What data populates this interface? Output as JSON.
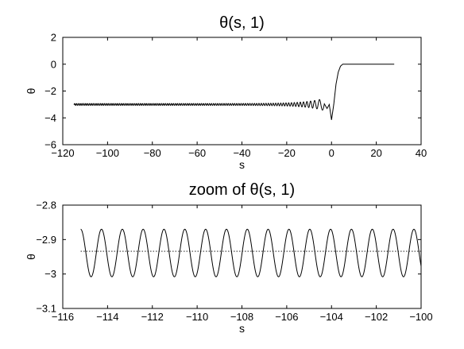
{
  "chart_data": [
    {
      "type": "line",
      "title": "θ(s, 1)",
      "xlabel": "s",
      "ylabel": "θ",
      "xlim": [
        -120,
        40
      ],
      "ylim": [
        -6,
        2
      ],
      "xticks": [
        -120,
        -100,
        -80,
        -60,
        -40,
        -20,
        0,
        20,
        40
      ],
      "xtick_labels": [
        "−120",
        "−100",
        "−80",
        "−60",
        "−40",
        "−20",
        "0",
        "20",
        "40"
      ],
      "yticks": [
        -6,
        -4,
        -2,
        0,
        2
      ],
      "ytick_labels": [
        "−6",
        "−4",
        "−2",
        "0",
        "2"
      ],
      "grid": false,
      "series": [
        {
          "points": [
            [
              -115,
              -2.93
            ],
            [
              -100,
              -2.95
            ],
            [
              -80,
              -2.98
            ],
            [
              -60,
              -3.0
            ],
            [
              -40,
              -3.0
            ],
            [
              -30,
              -3.0
            ],
            [
              -20,
              -3.02
            ],
            [
              -15,
              -3.05
            ],
            [
              -10,
              -3.1
            ],
            [
              -6,
              -3.2
            ],
            [
              -4,
              -3.25
            ],
            [
              -2,
              -3.3
            ],
            [
              -1,
              -3.0
            ],
            [
              0,
              -4.15
            ],
            [
              1,
              -3.0
            ],
            [
              2,
              -1.5
            ],
            [
              3,
              -0.6
            ],
            [
              4,
              -0.15
            ],
            [
              5,
              0.0
            ],
            [
              10,
              0.0
            ],
            [
              28,
              0.0
            ]
          ],
          "oscillation": {
            "center": -3.0,
            "amplitude_range": [
              0.07,
              0.65
            ],
            "s_range": [
              -115,
              0
            ]
          }
        }
      ]
    },
    {
      "type": "line",
      "title": "zoom of θ(s, 1)",
      "xlabel": "s",
      "ylabel": "θ",
      "xlim": [
        -116,
        -100
      ],
      "ylim": [
        -3.1,
        -2.8
      ],
      "xticks": [
        -116,
        -114,
        -112,
        -110,
        -108,
        -106,
        -104,
        -102,
        -100
      ],
      "xtick_labels": [
        "−116",
        "−114",
        "−112",
        "−110",
        "−108",
        "−106",
        "−104",
        "−102",
        "−100"
      ],
      "yticks": [
        -3.1,
        -3.0,
        -2.9,
        -2.8
      ],
      "ytick_labels": [
        "−3.1",
        "−3",
        "−2.9",
        "−2.8"
      ],
      "grid": false,
      "series": [
        {
          "s_range": [
            -115.2,
            -100
          ],
          "center": -2.939,
          "amplitude": 0.069,
          "period": 0.93,
          "phase_s": -115.2,
          "phase_value": -2.865
        }
      ],
      "reference_line": {
        "y": -2.934,
        "style": "dotted"
      }
    }
  ]
}
